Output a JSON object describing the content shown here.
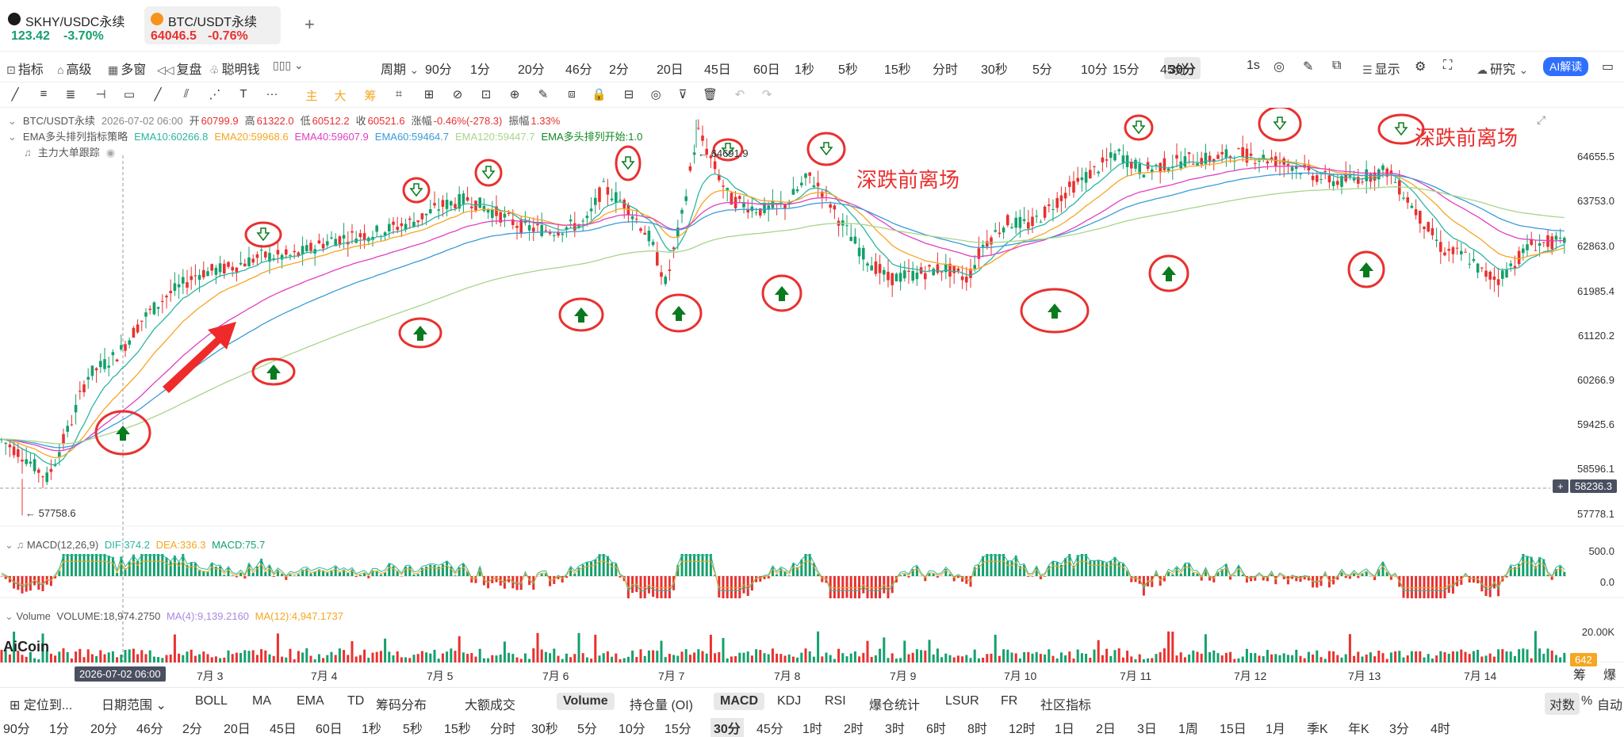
{
  "tabs": [
    {
      "name": "SKHY/USDC永续",
      "price": "123.42",
      "change": "-3.70%",
      "color": "#14a06c"
    },
    {
      "name": "BTC/USDT永续",
      "price": "64046.5",
      "change": "-0.76%",
      "color": "#e8312f"
    }
  ],
  "add_tab": "+",
  "toolbar": {
    "left_items": [
      "指标",
      "高级",
      "多窗",
      "复盘",
      "聪明钱"
    ],
    "period_label": "周期",
    "periods": [
      "90分",
      "1分",
      "20分",
      "46分",
      "2分",
      "20日",
      "45日",
      "60日",
      "1秒",
      "5秒",
      "15秒",
      "分时",
      "30秒",
      "5分",
      "10分",
      "15分",
      "30分",
      "45分"
    ],
    "selected_period": "30分",
    "right": {
      "realtime": "1s",
      "display": "显示",
      "research": "研究",
      "ai": "AI解读"
    }
  },
  "draw_tools": [
    "╱",
    "≡",
    "≣",
    "⊣",
    "▭",
    "╱",
    "⫽",
    "T",
    "···",
    "主",
    "大",
    "筹"
  ],
  "legend": {
    "symbol": "BTC/USDT永续",
    "date": "2026-07-02 06:00",
    "open_label": "开",
    "open": "60799.9",
    "high_label": "高",
    "high": "61322.0",
    "low_label": "低",
    "low": "60512.2",
    "close_label": "收",
    "close": "60521.6",
    "chg_label": "涨幅",
    "chg": "-0.46%(-278.3)",
    "amp_label": "振幅",
    "amp": "1.33%",
    "strategy": "EMA多头排列指标策略",
    "ema10": "EMA10:60266.8",
    "ema20": "EMA20:59968.6",
    "ema40": "EMA40:59607.9",
    "ema60": "EMA60:59464.7",
    "ema120": "EMA120:59447.7",
    "ema_start": "EMA多头排列开始:1.0",
    "tracker": "主力大单跟踪"
  },
  "price_scale": [
    "64655.5",
    "63753.0",
    "62863.0",
    "61985.4",
    "61120.2",
    "60266.9",
    "59425.6",
    "58596.1",
    "57778.1"
  ],
  "current_price": "58236.3",
  "high_mark": "← 64691.9",
  "low_mark": "← 57758.6",
  "annotations": [
    "深跌前离场",
    "深跌前离场"
  ],
  "macd": {
    "label": "MACD(12,26,9)",
    "dif": "DIF:374.2",
    "dea": "DEA:336.3",
    "macd": "MACD:75.7",
    "scale": [
      "500.0",
      "0.0"
    ]
  },
  "volume": {
    "label": "Volume",
    "value": "VOLUME:18,974.2750",
    "ma4": "MA(4):9,139.2160",
    "ma12": "MA(12):4,947.1737",
    "scale": "20.00K",
    "badge": "642"
  },
  "logo": "AiCoin",
  "x_axis": {
    "current": "2026-07-02 06:00",
    "labels": [
      "7月 3",
      "7月 4",
      "7月 5",
      "7月 6",
      "7月 7",
      "7月 8",
      "7月 9",
      "7月 10",
      "7月 11",
      "7月 12",
      "7月 13",
      "7月 14"
    ]
  },
  "bottom": {
    "goto": "定位到...",
    "date_range": "日期范围",
    "indicators": [
      "BOLL",
      "MA",
      "EMA",
      "TD",
      "筹码分布",
      "大额成交"
    ],
    "sub_indicators": [
      "Volume",
      "持仓量 (OI)",
      "MACD",
      "KDJ",
      "RSI",
      "爆仓统计",
      "LSUR",
      "FR",
      "社区指标"
    ],
    "right": [
      "对数",
      "%",
      "自动"
    ],
    "side": [
      "筹",
      "爆"
    ],
    "periods2": [
      "90分",
      "1分",
      "20分",
      "46分",
      "2分",
      "20日",
      "45日",
      "60日",
      "1秒",
      "5秒",
      "15秒",
      "分时",
      "30秒",
      "5分",
      "10分",
      "15分",
      "30分",
      "45分",
      "1时",
      "2时",
      "3时",
      "6时",
      "8时",
      "12时",
      "1日",
      "2日",
      "3日",
      "1周",
      "15日",
      "1月",
      "季K",
      "年K",
      "3分",
      "4时"
    ]
  },
  "colors": {
    "up": "#14a06c",
    "down": "#e8312f",
    "ema10": "#2bb5a0",
    "ema20": "#f5a623",
    "ema40": "#e040c0",
    "ema60": "#3a9bd9",
    "ema120": "#a8d58a",
    "accent": "#2f6fff"
  }
}
